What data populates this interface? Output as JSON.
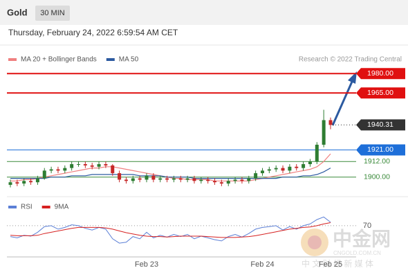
{
  "chart_data": {
    "type": "candlestick",
    "title": "Gold",
    "timeframe": "30 MIN",
    "subtitle": "Thursday, February 24, 2022 6:59:54 AM CET",
    "source": "Research © 2022 Trading Central",
    "categories": [
      null,
      null,
      null,
      null,
      null,
      null,
      null,
      null,
      null,
      null,
      null,
      null,
      null,
      null,
      null,
      null,
      null,
      null,
      null,
      null,
      "Feb 23",
      null,
      null,
      null,
      null,
      null,
      null,
      null,
      null,
      null,
      null,
      null,
      null,
      null,
      null,
      null,
      null,
      "Feb 24",
      null,
      null,
      null,
      null,
      null,
      null,
      null,
      null,
      null,
      "Feb 25"
    ],
    "open": [
      1894,
      1896,
      1895,
      1897,
      1896,
      1899,
      1905,
      1906,
      1905,
      1907,
      1910,
      1910,
      1909,
      1908,
      1910,
      1909,
      1903,
      1898,
      1897,
      1899,
      1898,
      1901,
      1898,
      1899,
      1898,
      1899,
      1898,
      1899,
      1897,
      1898,
      1897,
      1896,
      1895,
      1897,
      1898,
      1897,
      1899,
      1903,
      1905,
      1906,
      1907,
      1905,
      1908,
      1907,
      1910,
      1912,
      1925,
      1944
    ],
    "high": [
      1898,
      1898,
      1899,
      1899,
      1901,
      1907,
      1908,
      1908,
      1909,
      1912,
      1912,
      1912,
      1911,
      1912,
      1912,
      1910,
      1905,
      1900,
      1901,
      1901,
      1903,
      1903,
      1901,
      1901,
      1901,
      1901,
      1901,
      1901,
      1900,
      1900,
      1899,
      1898,
      1899,
      1900,
      1900,
      1901,
      1905,
      1907,
      1908,
      1909,
      1909,
      1910,
      1910,
      1912,
      1914,
      1927,
      1952,
      1946
    ],
    "low": [
      1892,
      1893,
      1893,
      1894,
      1894,
      1898,
      1903,
      1903,
      1903,
      1905,
      1908,
      1907,
      1906,
      1906,
      1907,
      1901,
      1896,
      1895,
      1895,
      1896,
      1896,
      1896,
      1896,
      1896,
      1896,
      1896,
      1896,
      1895,
      1895,
      1895,
      1894,
      1893,
      1893,
      1895,
      1895,
      1895,
      1897,
      1901,
      1903,
      1904,
      1903,
      1903,
      1905,
      1905,
      1908,
      1910,
      1923,
      1937
    ],
    "close": [
      1896,
      1895,
      1897,
      1896,
      1899,
      1905,
      1906,
      1905,
      1907,
      1910,
      1910,
      1909,
      1908,
      1910,
      1909,
      1903,
      1898,
      1897,
      1899,
      1898,
      1901,
      1898,
      1899,
      1898,
      1899,
      1898,
      1899,
      1897,
      1898,
      1897,
      1896,
      1895,
      1897,
      1898,
      1897,
      1899,
      1903,
      1905,
      1906,
      1907,
      1905,
      1908,
      1907,
      1910,
      1912,
      1925,
      1944,
      1940.31
    ],
    "up_color": "#2e7d32",
    "down_color": "#c62828",
    "series": [
      {
        "name": "MA 20 + Bollinger Bands",
        "color": "#f08080",
        "values": [
          1897,
          1897,
          1898,
          1898,
          1899,
          1900,
          1901,
          1902,
          1903,
          1904,
          1905,
          1906,
          1907,
          1907,
          1908,
          1908,
          1907,
          1906,
          1905,
          1904,
          1903,
          1902,
          1901,
          1900,
          1899,
          1899,
          1898,
          1898,
          1898,
          1898,
          1897,
          1897,
          1897,
          1897,
          1897,
          1897,
          1898,
          1899,
          1900,
          1901,
          1902,
          1903,
          1904,
          1905,
          1906,
          1908,
          1912,
          1918
        ]
      },
      {
        "name": "MA 50",
        "color": "#2c5aa0",
        "values": [
          1899,
          1899,
          1899,
          1899,
          1899,
          1899,
          1900,
          1900,
          1900,
          1901,
          1901,
          1901,
          1902,
          1902,
          1902,
          1902,
          1902,
          1902,
          1902,
          1901,
          1901,
          1901,
          1901,
          1900,
          1900,
          1900,
          1900,
          1899,
          1899,
          1899,
          1899,
          1899,
          1899,
          1899,
          1899,
          1899,
          1899,
          1899,
          1899,
          1899,
          1900,
          1900,
          1900,
          1901,
          1901,
          1902,
          1904,
          1907
        ]
      }
    ],
    "levels": [
      {
        "value": 1980,
        "label": "1980.00",
        "color": "#e01010",
        "boxed": true
      },
      {
        "value": 1965,
        "label": "1965.00",
        "color": "#e01010",
        "boxed": true
      },
      {
        "value": 1940.31,
        "label": "1940.31",
        "color": "#333333",
        "boxed": true
      },
      {
        "value": 1921,
        "label": "1921.00",
        "color": "#1e6fd9",
        "boxed": true
      },
      {
        "value": 1912,
        "label": "1912.00",
        "color": "#3a8a3a",
        "boxed": false
      },
      {
        "value": 1900,
        "label": "1900.00",
        "color": "#3a8a3a",
        "boxed": false
      }
    ],
    "ylim": [
      1887,
      1986
    ],
    "rsi": {
      "ylim": [
        0,
        100
      ],
      "yticks": [
        70
      ],
      "series": [
        {
          "name": "RSI",
          "color": "#5b7fd6",
          "values": [
            45,
            42,
            48,
            46,
            55,
            68,
            70,
            62,
            66,
            72,
            70,
            64,
            60,
            66,
            62,
            40,
            30,
            32,
            45,
            40,
            55,
            42,
            48,
            44,
            50,
            45,
            50,
            40,
            46,
            42,
            38,
            35,
            45,
            50,
            44,
            52,
            62,
            66,
            68,
            70,
            60,
            68,
            62,
            70,
            74,
            84,
            90,
            78
          ]
        },
        {
          "name": "9MA",
          "color": "#d62020",
          "values": [
            48,
            47,
            47,
            47,
            48,
            52,
            55,
            58,
            61,
            64,
            66,
            66,
            66,
            66,
            65,
            62,
            58,
            54,
            51,
            48,
            46,
            45,
            45,
            44,
            45,
            46,
            46,
            46,
            46,
            45,
            44,
            43,
            43,
            43,
            44,
            45,
            47,
            50,
            53,
            56,
            59,
            62,
            64,
            66,
            67,
            70,
            74,
            77
          ]
        }
      ]
    },
    "watermark": {
      "brand": "中金网",
      "site": "CNGOLD.COM.CN",
      "tagline": "中 文 财 经 新 媒 体"
    }
  }
}
